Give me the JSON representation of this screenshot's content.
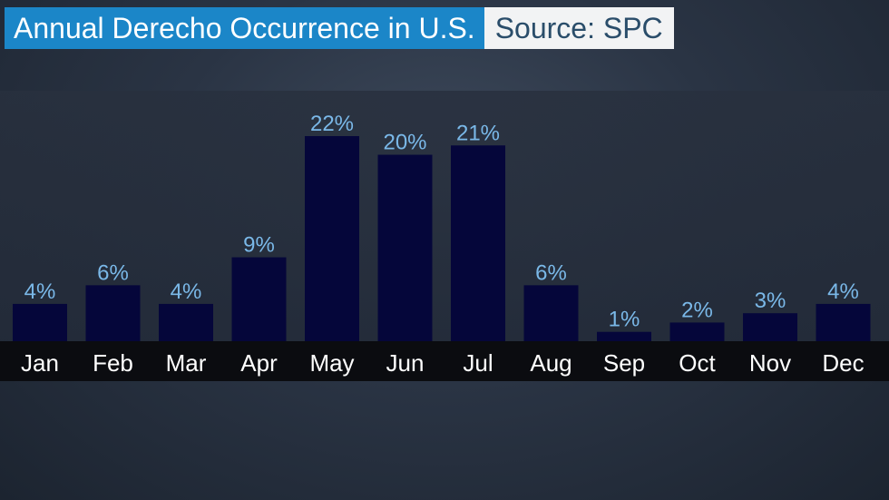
{
  "header": {
    "title": "Annual Derecho Occurrence in U.S.",
    "source": "Source: SPC"
  },
  "colors": {
    "title_bg": "#1b86c8",
    "source_bg": "#f2f3f4",
    "bar": "#05063a",
    "value_label": "#7ab8e8",
    "month_strip": "#0b0c10"
  },
  "chart_data": {
    "type": "bar",
    "title": "Annual Derecho Occurrence in U.S.",
    "categories": [
      "Jan",
      "Feb",
      "Mar",
      "Apr",
      "May",
      "Jun",
      "Jul",
      "Aug",
      "Sep",
      "Oct",
      "Nov",
      "Dec"
    ],
    "values": [
      4,
      6,
      4,
      9,
      22,
      20,
      21,
      6,
      1,
      2,
      3,
      4
    ],
    "value_labels": [
      "4%",
      "6%",
      "4%",
      "9%",
      "22%",
      "20%",
      "21%",
      "6%",
      "1%",
      "2%",
      "3%",
      "4%"
    ],
    "unit": "%",
    "ylim": [
      0,
      22
    ],
    "grid": false,
    "legend": "none"
  }
}
